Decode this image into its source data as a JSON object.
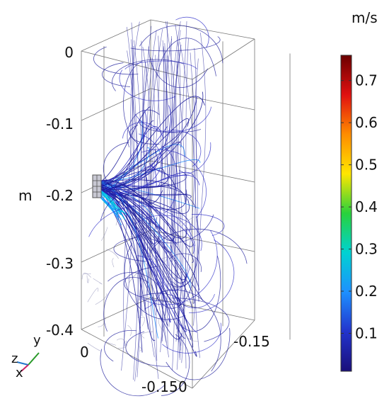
{
  "chart_data": {
    "type": "3d-streamline",
    "z_axis": {
      "unit_label": "m",
      "ticks": [
        "0",
        "-0.1",
        "-0.2",
        "-0.3",
        "-0.4"
      ],
      "range": [
        -0.4,
        0.0
      ]
    },
    "x_axis": {
      "ticks": [
        "0",
        "-0.15"
      ]
    },
    "y_axis": {
      "ticks": [
        "-0.15",
        "0"
      ]
    },
    "colorbar": {
      "unit": "m/s",
      "ticks": [
        "0.7",
        "0.6",
        "0.5",
        "0.4",
        "0.3",
        "0.2",
        "0.1"
      ],
      "tick_values": [
        0.7,
        0.6,
        0.5,
        0.4,
        0.3,
        0.2,
        0.1
      ],
      "range": [
        0.01,
        0.76
      ],
      "colormap": [
        "#1a0f7a",
        "#2233cc",
        "#1e90ff",
        "#00d2d2",
        "#28d23c",
        "#ffe600",
        "#ff8c00",
        "#e01010",
        "#6b0000"
      ]
    },
    "triad": {
      "labels": [
        "z",
        "y",
        "x"
      ]
    },
    "grid": true
  }
}
